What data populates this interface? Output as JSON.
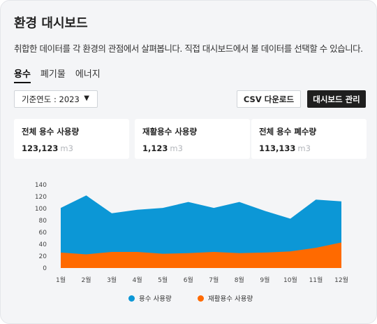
{
  "header": {
    "title": "환경 대시보드",
    "subtitle": "취합한 데이터를 각 환경의 관점에서 살펴봅니다. 직접 대시보드에서 볼 데이터를 선택할 수 있습니다."
  },
  "tabs": [
    {
      "label": "용수",
      "active": true
    },
    {
      "label": "폐기물",
      "active": false
    },
    {
      "label": "에너지",
      "active": false
    }
  ],
  "controls": {
    "year_select": "기준연도 : 2023",
    "csv_button": "CSV 다운로드",
    "manage_button": "대시보드 관리"
  },
  "stats": [
    {
      "label": "전체 용수 사용량",
      "value": "123,123",
      "unit": "m3"
    },
    {
      "label": "재활용수 사용량",
      "value": "1,123",
      "unit": "m3"
    },
    {
      "label": "전체 용수 폐수량",
      "value": "113,133",
      "unit": "m3"
    }
  ],
  "colors": {
    "series_water": "#0c97d6",
    "series_recycled": "#ff6a00"
  },
  "chart_data": {
    "type": "area",
    "categories": [
      "1월",
      "2월",
      "3월",
      "4월",
      "5월",
      "6월",
      "7월",
      "8월",
      "9월",
      "10월",
      "11월",
      "12월"
    ],
    "series": [
      {
        "name": "용수 사용량",
        "values": [
          101,
          122,
          92,
          98,
          101,
          111,
          101,
          111,
          96,
          83,
          115,
          112
        ]
      },
      {
        "name": "재활용수 사용량",
        "values": [
          26,
          23,
          27,
          27,
          24,
          25,
          27,
          25,
          26,
          28,
          34,
          43
        ]
      }
    ],
    "yticks": [
      0,
      20,
      40,
      60,
      80,
      100,
      120,
      140
    ],
    "ylim": [
      0,
      140
    ],
    "legend": "bottom",
    "grid": false
  }
}
